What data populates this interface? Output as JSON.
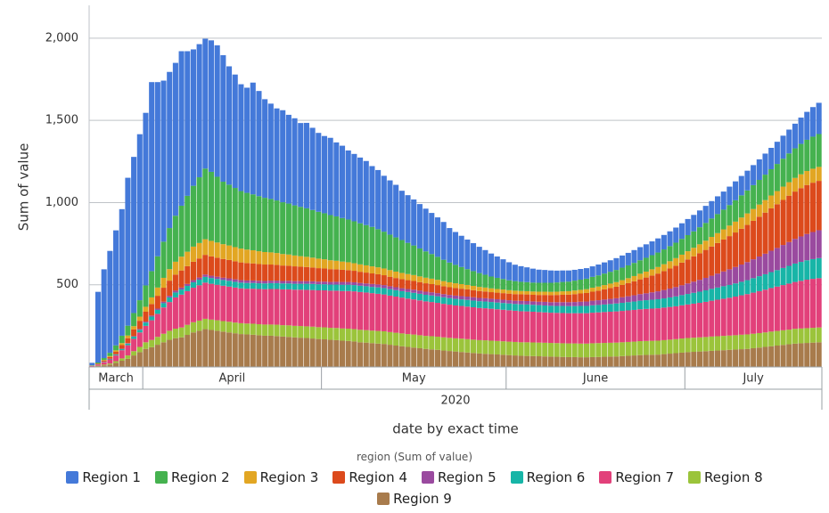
{
  "chart_data": {
    "type": "bar",
    "stacked": true,
    "y_label": "Sum of value",
    "x_label": "date by exact time",
    "x_group": "2020",
    "legend_title": "region (Sum of value)",
    "legend": "bottom",
    "grid": true,
    "ylim": [
      0,
      2200
    ],
    "yticks": [
      500,
      {
        "value": 1000,
        "label": "1,000"
      },
      {
        "value": 1500,
        "label": "1,500"
      },
      {
        "value": 2000,
        "label": "2,000"
      }
    ],
    "categories": [
      "March",
      "March",
      "March",
      "March",
      "March",
      "March",
      "March",
      "March",
      "March",
      "April",
      "April",
      "April",
      "April",
      "April",
      "April",
      "April",
      "April",
      "April",
      "April",
      "April",
      "April",
      "April",
      "April",
      "April",
      "April",
      "April",
      "April",
      "April",
      "April",
      "April",
      "April",
      "April",
      "April",
      "April",
      "April",
      "April",
      "April",
      "April",
      "April",
      "May",
      "May",
      "May",
      "May",
      "May",
      "May",
      "May",
      "May",
      "May",
      "May",
      "May",
      "May",
      "May",
      "May",
      "May",
      "May",
      "May",
      "May",
      "May",
      "May",
      "May",
      "May",
      "May",
      "May",
      "May",
      "May",
      "May",
      "May",
      "May",
      "May",
      "May",
      "June",
      "June",
      "June",
      "June",
      "June",
      "June",
      "June",
      "June",
      "June",
      "June",
      "June",
      "June",
      "June",
      "June",
      "June",
      "June",
      "June",
      "June",
      "June",
      "June",
      "June",
      "June",
      "June",
      "June",
      "June",
      "June",
      "June",
      "June",
      "June",
      "June",
      "July",
      "July",
      "July",
      "July",
      "July",
      "July",
      "July",
      "July",
      "July",
      "July",
      "July",
      "July",
      "July",
      "July",
      "July",
      "July",
      "July",
      "July",
      "July",
      "July",
      "July",
      "July",
      "July"
    ],
    "series": [
      {
        "name": "Region 9",
        "color": "#a87b4c",
        "values": [
          2,
          5,
          10,
          15,
          25,
          38,
          50,
          70,
          90,
          110,
          120,
          135,
          150,
          165,
          175,
          180,
          195,
          210,
          220,
          230,
          225,
          220,
          215,
          210,
          205,
          200,
          198,
          196,
          193,
          190,
          190,
          188,
          185,
          183,
          180,
          178,
          176,
          173,
          170,
          168,
          165,
          163,
          160,
          158,
          155,
          150,
          148,
          145,
          142,
          140,
          135,
          130,
          126,
          122,
          118,
          114,
          110,
          107,
          104,
          100,
          97,
          94,
          91,
          88,
          85,
          82,
          80,
          78,
          76,
          74,
          72,
          70,
          68,
          67,
          66,
          65,
          64,
          63,
          62,
          61,
          60,
          60,
          59,
          59,
          60,
          61,
          62,
          63,
          64,
          66,
          68,
          70,
          72,
          73,
          74,
          75,
          78,
          81,
          84,
          87,
          90,
          92,
          94,
          96,
          98,
          100,
          102,
          104,
          106,
          108,
          110,
          114,
          118,
          122,
          126,
          130,
          134,
          138,
          142,
          144,
          146,
          148,
          150
        ]
      },
      {
        "name": "Region 8",
        "color": "#9bc43b",
        "values": [
          1,
          2,
          4,
          6,
          10,
          14,
          20,
          26,
          32,
          40,
          44,
          48,
          52,
          55,
          58,
          60,
          61,
          62,
          62,
          63,
          63,
          64,
          64,
          65,
          65,
          66,
          66,
          67,
          67,
          68,
          68,
          69,
          69,
          70,
          70,
          71,
          71,
          72,
          72,
          73,
          73,
          74,
          74,
          75,
          75,
          76,
          76,
          76,
          77,
          77,
          77,
          78,
          78,
          78,
          79,
          79,
          79,
          80,
          80,
          80,
          80,
          80,
          81,
          81,
          81,
          81,
          82,
          82,
          82,
          82,
          82,
          82,
          82,
          83,
          83,
          83,
          83,
          83,
          83,
          83,
          83,
          83,
          83,
          83,
          84,
          84,
          84,
          84,
          84,
          84,
          84,
          84,
          85,
          85,
          85,
          85,
          85,
          85,
          85,
          86,
          86,
          86,
          86,
          86,
          87,
          87,
          87,
          87,
          87,
          88,
          88,
          88,
          88,
          88,
          89,
          89,
          89,
          89,
          90,
          90,
          90,
          90,
          90
        ]
      },
      {
        "name": "Region 7",
        "color": "#e2407a",
        "values": [
          3,
          8,
          15,
          25,
          35,
          50,
          62,
          75,
          88,
          100,
          120,
          140,
          160,
          175,
          190,
          200,
          205,
          210,
          215,
          220,
          218,
          216,
          215,
          214,
          213,
          212,
          212,
          213,
          214,
          215,
          216,
          217,
          218,
          219,
          220,
          221,
          222,
          223,
          224,
          225,
          226,
          227,
          228,
          229,
          230,
          230,
          229,
          228,
          226,
          224,
          222,
          220,
          218,
          216,
          214,
          212,
          210,
          208,
          206,
          204,
          202,
          200,
          199,
          198,
          197,
          196,
          195,
          194,
          193,
          192,
          191,
          190,
          189,
          188,
          187,
          186,
          185,
          184,
          184,
          184,
          184,
          184,
          185,
          185,
          186,
          187,
          188,
          189,
          190,
          191,
          192,
          193,
          194,
          195,
          196,
          197,
          198,
          199,
          200,
          202,
          204,
          207,
          210,
          214,
          218,
          222,
          226,
          230,
          235,
          240,
          245,
          250,
          255,
          260,
          265,
          270,
          275,
          280,
          285,
          290,
          295,
          298,
          300
        ]
      },
      {
        "name": "Region 6",
        "color": "#17b5a7",
        "values": [
          0,
          1,
          2,
          3,
          5,
          7,
          10,
          13,
          16,
          20,
          22,
          24,
          26,
          28,
          30,
          31,
          32,
          33,
          34,
          35,
          35,
          35,
          35,
          35,
          35,
          35,
          35,
          35,
          35,
          35,
          36,
          36,
          36,
          36,
          36,
          36,
          37,
          37,
          37,
          37,
          37,
          37,
          38,
          38,
          38,
          38,
          38,
          38,
          39,
          39,
          39,
          39,
          39,
          40,
          40,
          40,
          40,
          40,
          40,
          40,
          40,
          40,
          40,
          41,
          41,
          41,
          41,
          41,
          41,
          41,
          41,
          41,
          42,
          42,
          42,
          42,
          42,
          42,
          42,
          43,
          43,
          43,
          44,
          44,
          45,
          45,
          46,
          47,
          48,
          49,
          50,
          51,
          52,
          53,
          54,
          55,
          56,
          58,
          60,
          62,
          64,
          66,
          68,
          70,
          72,
          74,
          76,
          78,
          80,
          82,
          85,
          88,
          91,
          94,
          97,
          100,
          104,
          108,
          112,
          115,
          118,
          120,
          122
        ]
      },
      {
        "name": "Region 5",
        "color": "#9a4a9f",
        "values": [
          0,
          0,
          1,
          1,
          2,
          2,
          3,
          4,
          5,
          6,
          7,
          8,
          9,
          10,
          11,
          12,
          12,
          13,
          13,
          14,
          14,
          14,
          14,
          15,
          15,
          15,
          15,
          15,
          15,
          15,
          15,
          15,
          15,
          16,
          16,
          16,
          16,
          16,
          16,
          16,
          16,
          17,
          17,
          17,
          17,
          17,
          17,
          18,
          18,
          18,
          18,
          18,
          18,
          18,
          19,
          19,
          19,
          19,
          19,
          19,
          19,
          20,
          20,
          20,
          20,
          20,
          20,
          20,
          20,
          20,
          20,
          20,
          21,
          21,
          21,
          21,
          22,
          22,
          23,
          23,
          24,
          25,
          26,
          27,
          28,
          29,
          30,
          31,
          32,
          34,
          36,
          38,
          40,
          42,
          45,
          48,
          51,
          54,
          57,
          60,
          64,
          68,
          72,
          76,
          80,
          85,
          90,
          95,
          100,
          105,
          110,
          115,
          120,
          125,
          130,
          135,
          140,
          145,
          150,
          155,
          160,
          165,
          170
        ]
      },
      {
        "name": "Region 4",
        "color": "#dc4a1c",
        "values": [
          1,
          3,
          6,
          10,
          15,
          22,
          30,
          40,
          50,
          60,
          70,
          78,
          85,
          92,
          98,
          104,
          108,
          112,
          116,
          120,
          118,
          116,
          114,
          112,
          110,
          108,
          106,
          104,
          102,
          100,
          98,
          96,
          94,
          92,
          90,
          88,
          86,
          84,
          82,
          80,
          78,
          76,
          74,
          72,
          70,
          68,
          66,
          64,
          62,
          60,
          58,
          56,
          55,
          54,
          53,
          52,
          51,
          50,
          49,
          48,
          47,
          46,
          45,
          44,
          43,
          42,
          41,
          40,
          40,
          40,
          40,
          40,
          40,
          40,
          40,
          41,
          42,
          43,
          44,
          45,
          46,
          48,
          50,
          52,
          55,
          58,
          62,
          66,
          70,
          75,
          80,
          85,
          90,
          96,
          102,
          108,
          115,
          122,
          130,
          138,
          146,
          154,
          162,
          170,
          178,
          186,
          194,
          202,
          210,
          218,
          226,
          234,
          242,
          250,
          258,
          266,
          274,
          282,
          288,
          294,
          298,
          300,
          300
        ]
      },
      {
        "name": "Region 3",
        "color": "#e2a623",
        "values": [
          1,
          2,
          4,
          6,
          9,
          12,
          16,
          20,
          25,
          30,
          40,
          50,
          60,
          70,
          78,
          84,
          88,
          92,
          94,
          95,
          94,
          92,
          90,
          88,
          86,
          84,
          82,
          80,
          78,
          76,
          74,
          72,
          70,
          68,
          66,
          64,
          62,
          60,
          58,
          56,
          54,
          52,
          50,
          48,
          46,
          45,
          44,
          43,
          42,
          41,
          40,
          39,
          38,
          37,
          36,
          35,
          34,
          33,
          32,
          31,
          30,
          29,
          28,
          27,
          26,
          25,
          24,
          23,
          22,
          22,
          21,
          21,
          20,
          20,
          20,
          20,
          20,
          20,
          20,
          21,
          21,
          22,
          22,
          23,
          24,
          25,
          26,
          27,
          28,
          29,
          30,
          32,
          34,
          36,
          38,
          40,
          42,
          44,
          46,
          48,
          50,
          52,
          54,
          56,
          58,
          60,
          62,
          64,
          66,
          68,
          70,
          72,
          74,
          76,
          78,
          80,
          81,
          82,
          83,
          84,
          85,
          85,
          85
        ]
      },
      {
        "name": "Region 2",
        "color": "#45b24f",
        "values": [
          2,
          6,
          12,
          20,
          30,
          45,
          60,
          80,
          100,
          130,
          160,
          190,
          220,
          250,
          280,
          310,
          340,
          370,
          400,
          430,
          420,
          400,
          380,
          370,
          360,
          350,
          345,
          340,
          335,
          330,
          325,
          320,
          315,
          310,
          305,
          300,
          295,
          290,
          285,
          280,
          275,
          270,
          265,
          260,
          255,
          250,
          245,
          240,
          232,
          224,
          216,
          208,
          200,
          190,
          180,
          170,
          160,
          150,
          140,
          130,
          120,
          112,
          104,
          96,
          90,
          84,
          78,
          72,
          68,
          64,
          60,
          58,
          56,
          55,
          54,
          54,
          54,
          55,
          56,
          57,
          58,
          60,
          62,
          64,
          66,
          68,
          70,
          72,
          74,
          76,
          78,
          80,
          82,
          84,
          86,
          88,
          90,
          92,
          94,
          96,
          98,
          100,
          104,
          108,
          112,
          116,
          120,
          125,
          130,
          135,
          140,
          145,
          150,
          155,
          160,
          165,
          170,
          175,
          180,
          185,
          190,
          195,
          200
        ]
      },
      {
        "name": "Region 1",
        "color": "#4479d9",
        "values": [
          15,
          430,
          540,
          620,
          700,
          770,
          900,
          950,
          1010,
          1050,
          1150,
          1060,
          980,
          950,
          930,
          940,
          880,
          830,
          810,
          790,
          800,
          800,
          770,
          720,
          690,
          650,
          640,
          680,
          640,
          600,
          580,
          560,
          560,
          540,
          530,
          510,
          520,
          500,
          480,
          470,
          470,
          450,
          440,
          420,
          410,
          400,
          390,
          370,
          360,
          340,
          330,
          320,
          300,
          290,
          280,
          270,
          260,
          250,
          240,
          230,
          210,
          200,
          190,
          180,
          170,
          160,
          150,
          140,
          130,
          120,
          110,
          100,
          95,
          90,
          85,
          80,
          78,
          75,
          72,
          70,
          68,
          66,
          65,
          64,
          64,
          66,
          68,
          70,
          72,
          74,
          76,
          78,
          80,
          82,
          84,
          86,
          88,
          90,
          92,
          95,
          98,
          100,
          102,
          104,
          106,
          108,
          110,
          112,
          115,
          118,
          120,
          122,
          125,
          128,
          130,
          135,
          140,
          145,
          150,
          160,
          170,
          180,
          190
        ]
      }
    ]
  }
}
